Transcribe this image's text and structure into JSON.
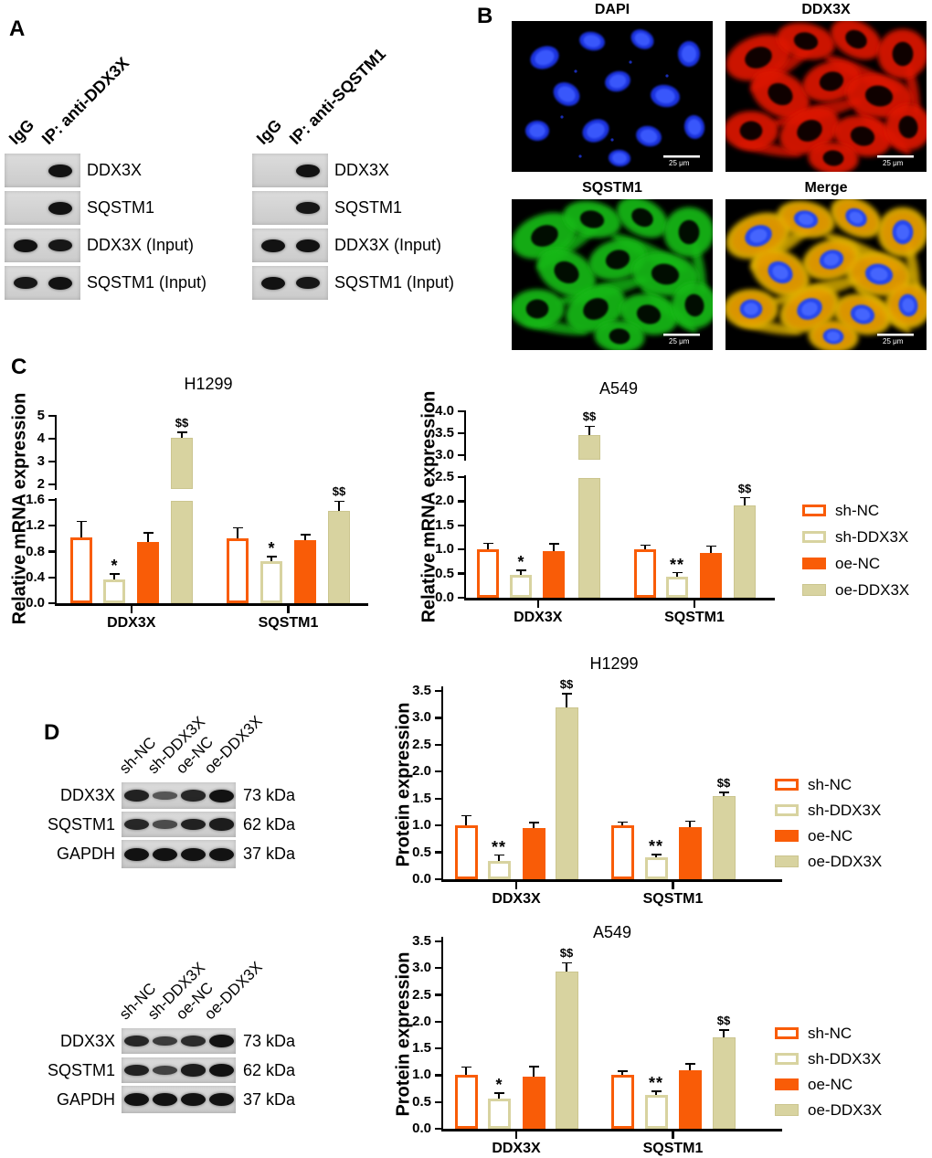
{
  "figure": {
    "colors": {
      "orange": "#F95C07",
      "khaki": "#D8D3A0",
      "khaki_border": "#CBC58F"
    },
    "panels": {
      "A": {
        "label": "A",
        "groups": [
          {
            "lanes": [
              "IgG",
              "IP: anti-DDX3X"
            ],
            "rows": [
              {
                "label": "DDX3X",
                "bands": [
                  0,
                  1
                ]
              },
              {
                "label": "SQSTM1",
                "bands": [
                  0,
                  1
                ]
              },
              {
                "label": "DDX3X (Input)",
                "bands": [
                  1,
                  0.95
                ]
              },
              {
                "label": "SQSTM1 (Input)",
                "bands": [
                  0.95,
                  1
                ]
              }
            ]
          },
          {
            "lanes": [
              "IgG",
              "IP: anti-SQSTM1"
            ],
            "rows": [
              {
                "label": "DDX3X",
                "bands": [
                  0,
                  1
                ]
              },
              {
                "label": "SQSTM1",
                "bands": [
                  0,
                  0.95
                ]
              },
              {
                "label": "DDX3X (Input)",
                "bands": [
                  1,
                  1
                ]
              },
              {
                "label": "SQSTM1 (Input)",
                "bands": [
                  1,
                  0.95
                ]
              }
            ]
          }
        ]
      },
      "B": {
        "label": "B",
        "images": [
          {
            "title": "DAPI",
            "channel": "dapi",
            "scale_bar": "25 μm"
          },
          {
            "title": "DDX3X",
            "channel": "red",
            "scale_bar": "25 μm"
          },
          {
            "title": "SQSTM1",
            "channel": "green",
            "scale_bar": "25 μm"
          },
          {
            "title": "Merge",
            "channel": "merge",
            "scale_bar": "25 μm"
          }
        ]
      },
      "C": {
        "label": "C"
      },
      "D": {
        "label": "D",
        "blot_sets": [
          {
            "lanes": [
              "sh-NC",
              "sh-DDX3X",
              "oe-NC",
              "oe-DDX3X"
            ],
            "rows": [
              {
                "label": "DDX3X",
                "kda": "73 kDa",
                "bands": [
                  0.85,
                  0.35,
                  0.8,
                  1
                ]
              },
              {
                "label": "SQSTM1",
                "kda": "62 kDa",
                "bands": [
                  0.8,
                  0.45,
                  0.85,
                  0.9
                ]
              },
              {
                "label": "GAPDH",
                "kda": "37 kDa",
                "bands": [
                  1,
                  1,
                  1,
                  1
                ]
              }
            ]
          },
          {
            "lanes": [
              "sh-NC",
              "sh-DDX3X",
              "oe-NC",
              "oe-DDX3X"
            ],
            "rows": [
              {
                "label": "DDX3X",
                "kda": "73 kDa",
                "bands": [
                  0.8,
                  0.6,
                  0.75,
                  1
                ]
              },
              {
                "label": "SQSTM1",
                "kda": "62 kDa",
                "bands": [
                  0.85,
                  0.55,
                  0.9,
                  1
                ]
              },
              {
                "label": "GAPDH",
                "kda": "37 kDa",
                "bands": [
                  1,
                  1,
                  1,
                  1
                ]
              }
            ]
          }
        ]
      }
    }
  },
  "chart_data": [
    {
      "id": "mrna_h1299",
      "type": "bar",
      "title": "H1299",
      "ylabel": "Relative mRNA expression",
      "categories": [
        "DDX3X",
        "SQSTM1"
      ],
      "series": [
        {
          "name": "sh-NC",
          "style": "outline-orange",
          "values": [
            1.02,
            1.01
          ],
          "errors": [
            0.25,
            0.16
          ],
          "sig": [
            "",
            ""
          ]
        },
        {
          "name": "sh-DDX3X",
          "style": "outline-khaki",
          "values": [
            0.37,
            0.65
          ],
          "errors": [
            0.08,
            0.07
          ],
          "sig": [
            "*",
            "*"
          ]
        },
        {
          "name": "oe-NC",
          "style": "solid-orange",
          "values": [
            0.95,
            0.98
          ],
          "errors": [
            0.14,
            0.08
          ],
          "sig": [
            "",
            ""
          ]
        },
        {
          "name": "oe-DDX3X",
          "style": "solid-khaki",
          "values": [
            4.05,
            1.43
          ],
          "errors": [
            0.23,
            0.15
          ],
          "sig": [
            "$$",
            "$$"
          ]
        }
      ],
      "axis": {
        "break": true,
        "ylim_lower": [
          0,
          1.6
        ],
        "ylim_upper": [
          2,
          5
        ],
        "lower_ticks": [
          "0.0",
          "0.4",
          "0.8",
          "1.2",
          "1.6"
        ],
        "upper_ticks": [
          "2",
          "3",
          "4",
          "5"
        ]
      },
      "legend_position": "none"
    },
    {
      "id": "mrna_a549",
      "type": "bar",
      "title": "A549",
      "ylabel": "Relative mRNA expression",
      "categories": [
        "DDX3X",
        "SQSTM1"
      ],
      "series": [
        {
          "name": "sh-NC",
          "style": "outline-orange",
          "values": [
            1.0,
            1.0
          ],
          "errors": [
            0.13,
            0.09
          ],
          "sig": [
            "",
            ""
          ]
        },
        {
          "name": "sh-DDX3X",
          "style": "outline-khaki",
          "values": [
            0.48,
            0.44
          ],
          "errors": [
            0.09,
            0.08
          ],
          "sig": [
            "*",
            "**"
          ]
        },
        {
          "name": "oe-NC",
          "style": "solid-orange",
          "values": [
            0.96,
            0.92
          ],
          "errors": [
            0.16,
            0.15
          ],
          "sig": [
            "",
            ""
          ]
        },
        {
          "name": "oe-DDX3X",
          "style": "solid-khaki",
          "values": [
            3.45,
            1.92
          ],
          "errors": [
            0.21,
            0.15
          ],
          "sig": [
            "$$",
            "$$"
          ]
        }
      ],
      "axis": {
        "break": true,
        "ylim_lower": [
          0,
          2.5
        ],
        "ylim_upper": [
          3,
          4
        ],
        "lower_ticks": [
          "0.0",
          "0.5",
          "1.0",
          "1.5",
          "2.0",
          "2.5"
        ],
        "upper_ticks": [
          "3.0",
          "3.5",
          "4.0"
        ]
      },
      "legend_position": "right"
    },
    {
      "id": "prot_h1299",
      "type": "bar",
      "title": "H1299",
      "ylabel": "Protein expression",
      "categories": [
        "DDX3X",
        "SQSTM1"
      ],
      "series": [
        {
          "name": "sh-NC",
          "style": "outline-orange",
          "values": [
            1.0,
            1.0
          ],
          "errors": [
            0.18,
            0.06
          ],
          "sig": [
            "",
            ""
          ]
        },
        {
          "name": "sh-DDX3X",
          "style": "outline-khaki",
          "values": [
            0.34,
            0.41
          ],
          "errors": [
            0.11,
            0.05
          ],
          "sig": [
            "**",
            "**"
          ]
        },
        {
          "name": "oe-NC",
          "style": "solid-orange",
          "values": [
            0.95,
            0.96
          ],
          "errors": [
            0.1,
            0.12
          ],
          "sig": [
            "",
            ""
          ]
        },
        {
          "name": "oe-DDX3X",
          "style": "solid-khaki",
          "values": [
            3.2,
            1.54
          ],
          "errors": [
            0.25,
            0.07
          ],
          "sig": [
            "$$",
            "$$"
          ]
        }
      ],
      "axis": {
        "break": false,
        "ylim": [
          0,
          3.5
        ],
        "ticks": [
          "0.0",
          "0.5",
          "1.0",
          "1.5",
          "2.0",
          "2.5",
          "3.0",
          "3.5"
        ]
      },
      "legend_position": "right"
    },
    {
      "id": "prot_a549",
      "type": "bar",
      "title": "A549",
      "ylabel": "Protein expression",
      "categories": [
        "DDX3X",
        "SQSTM1"
      ],
      "series": [
        {
          "name": "sh-NC",
          "style": "outline-orange",
          "values": [
            1.0,
            1.0
          ],
          "errors": [
            0.15,
            0.08
          ],
          "sig": [
            "",
            ""
          ]
        },
        {
          "name": "sh-DDX3X",
          "style": "outline-khaki",
          "values": [
            0.57,
            0.64
          ],
          "errors": [
            0.1,
            0.06
          ],
          "sig": [
            "*",
            "**"
          ]
        },
        {
          "name": "oe-NC",
          "style": "solid-orange",
          "values": [
            0.98,
            1.09
          ],
          "errors": [
            0.18,
            0.12
          ],
          "sig": [
            "",
            ""
          ]
        },
        {
          "name": "oe-DDX3X",
          "style": "solid-khaki",
          "values": [
            2.94,
            1.71
          ],
          "errors": [
            0.16,
            0.13
          ],
          "sig": [
            "$$",
            "$$"
          ]
        }
      ],
      "axis": {
        "break": false,
        "ylim": [
          0,
          3.5
        ],
        "ticks": [
          "0.0",
          "0.5",
          "1.0",
          "1.5",
          "2.0",
          "2.5",
          "3.0",
          "3.5"
        ]
      },
      "legend_position": "right"
    }
  ]
}
